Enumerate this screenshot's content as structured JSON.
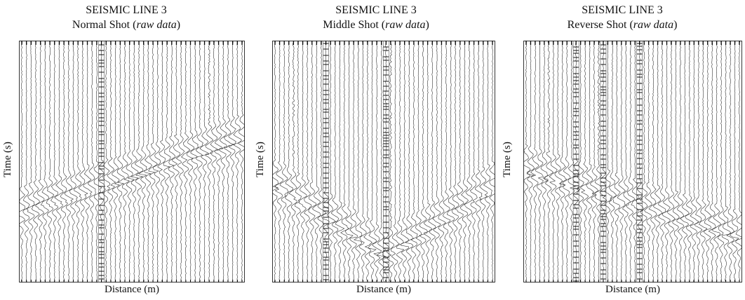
{
  "chart_data": [
    {
      "type": "seismic-wiggle",
      "title": "SEISMIC LINE 3",
      "subtitle_main": "Normal Shot (",
      "subtitle_italic": "raw data",
      "subtitle_end": ")",
      "xlabel": "Distance (m)",
      "ylabel": "Time (s)",
      "traces": 48,
      "source_trace": 0,
      "first_break_start": 0.72,
      "first_break_slope": 0.0064,
      "noisy_traces": [
        17
      ],
      "strong_traces": [
        40
      ]
    },
    {
      "type": "seismic-wiggle",
      "title": "SEISMIC LINE 3",
      "subtitle_main": "Middle Shot (",
      "subtitle_italic": "raw data",
      "subtitle_end": ")",
      "xlabel": "Distance (m)",
      "ylabel": "Time (s)",
      "traces": 48,
      "source_trace": 24,
      "first_break_start": 0.9,
      "first_break_slope": 0.0123,
      "noisy_traces": [
        11,
        24
      ],
      "strong_traces": [
        4,
        25
      ]
    },
    {
      "type": "seismic-wiggle",
      "title": "SEISMIC LINE 3",
      "subtitle_main": "Reverse Shot (",
      "subtitle_italic": "raw data",
      "subtitle_end": ")",
      "xlabel": "Distance (m)",
      "ylabel": "Time (s)",
      "traces": 48,
      "source_trace": 47,
      "first_break_start": 0.82,
      "first_break_slope": 0.0058,
      "noisy_traces": [
        11,
        17,
        25
      ],
      "strong_traces": [
        5,
        16
      ]
    }
  ]
}
